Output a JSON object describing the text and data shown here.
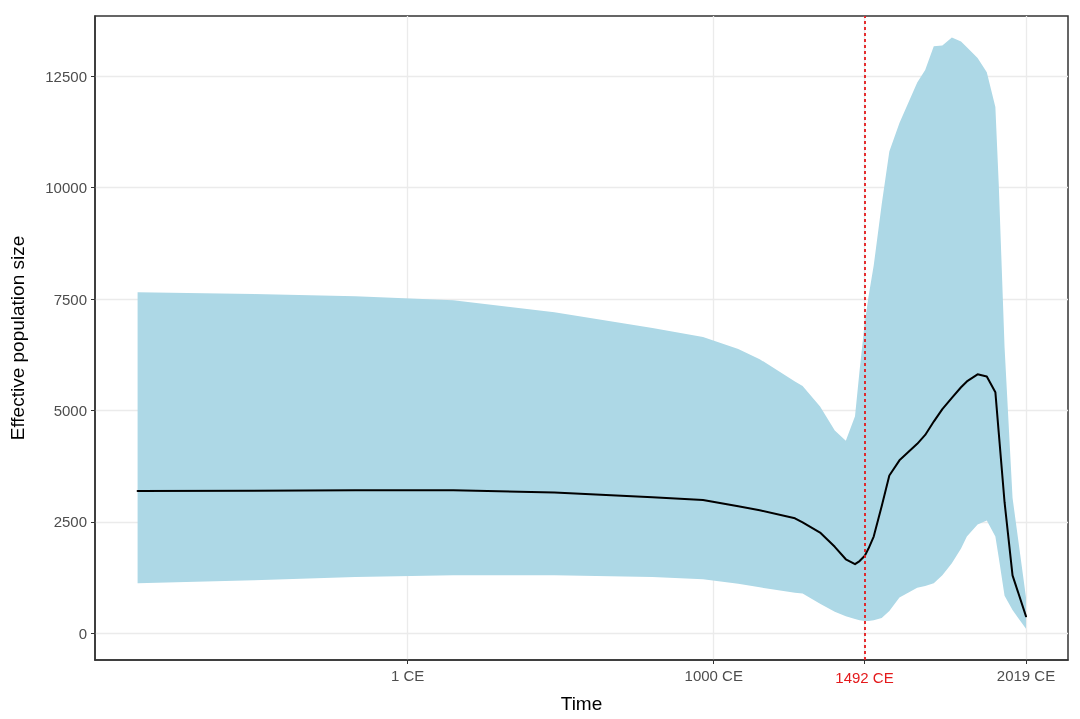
{
  "chart_data": {
    "type": "line",
    "xlabel": "Time",
    "ylabel": "Effective population size",
    "x": [
      -880,
      -500,
      -170,
      150,
      480,
      800,
      965,
      1080,
      1150,
      1265,
      1290,
      1347,
      1395,
      1431,
      1461,
      1476,
      1493,
      1505,
      1522,
      1548,
      1573,
      1606,
      1664,
      1690,
      1718,
      1746,
      1777,
      1807,
      1826,
      1861,
      1891,
      1919,
      1930,
      1949,
      1975,
      2019
    ],
    "series": [
      {
        "color": "#000000",
        "values": [
          3190,
          3200,
          3210,
          3210,
          3160,
          3050,
          2990,
          2850,
          2760,
          2580,
          2490,
          2260,
          1940,
          1660,
          1550,
          1620,
          1740,
          1900,
          2170,
          2850,
          3540,
          3880,
          4250,
          4450,
          4750,
          5030,
          5280,
          5520,
          5650,
          5810,
          5760,
          5410,
          4500,
          2940,
          1300,
          380
        ],
        "lower": [
          1120,
          1190,
          1260,
          1300,
          1300,
          1260,
          1210,
          1110,
          1030,
          910,
          890,
          660,
          480,
          380,
          320,
          290,
          275,
          275,
          290,
          340,
          500,
          800,
          1020,
          1060,
          1120,
          1300,
          1570,
          1900,
          2170,
          2440,
          2530,
          2170,
          1700,
          840,
          520,
          100
        ],
        "upper": [
          7650,
          7610,
          7560,
          7470,
          7200,
          6850,
          6650,
          6380,
          6150,
          5650,
          5550,
          5090,
          4550,
          4320,
          4870,
          5900,
          6970,
          7550,
          8250,
          9620,
          10810,
          11450,
          12360,
          12640,
          13170,
          13190,
          13370,
          13280,
          13150,
          12910,
          12590,
          11810,
          10080,
          6420,
          3040,
          800
        ]
      }
    ],
    "xlim": [
      -1019,
      2156
    ],
    "xticks": [
      {
        "value": 1,
        "label": "1 CE"
      },
      {
        "value": 1000,
        "label": "1000 CE"
      },
      {
        "value": 1492,
        "label": null
      },
      {
        "value": 2019,
        "label": "2019 CE"
      }
    ],
    "ylim": [
      -600,
      13850
    ],
    "yticks": [
      0,
      2500,
      5000,
      7500,
      10000,
      12500
    ],
    "ref_lines": [
      {
        "axis": "x",
        "value": 1492,
        "label": "1492 CE",
        "color": "#e41a1c",
        "line_style": "dotted"
      }
    ],
    "grid": true,
    "marker": "none",
    "line_style": "solid"
  }
}
